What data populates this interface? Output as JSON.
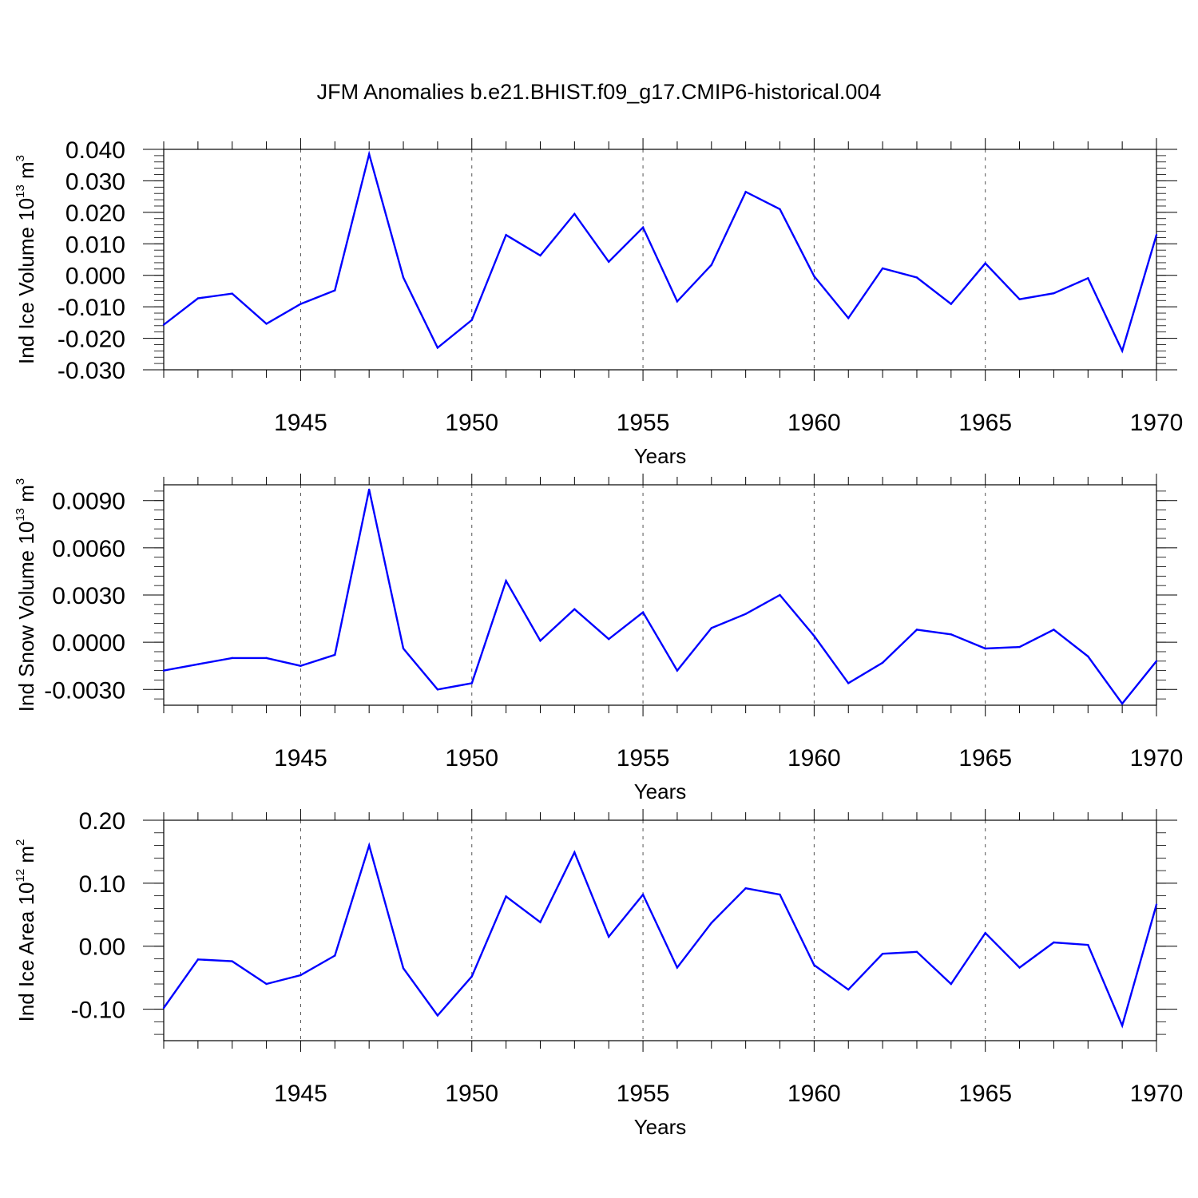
{
  "title": "JFM Anomalies b.e21.BHIST.f09_g17.CMIP6-historical.004",
  "colors": {
    "line": "#0000ff",
    "axis": "#000000",
    "grid": "#555555"
  },
  "chart_data": [
    {
      "type": "line",
      "xlabel": "Years",
      "ylabel": {
        "text": "Ind Ice Volume 10",
        "exp": "13",
        "unit": " m",
        "unit_exp": "3"
      },
      "xlim": [
        1941,
        1970
      ],
      "ylim": [
        -0.03,
        0.04
      ],
      "x_ticks": [
        "1945",
        "1950",
        "1955",
        "1960",
        "1965",
        "1970"
      ],
      "y_ticks": [
        "0.040",
        "0.030",
        "0.020",
        "0.010",
        "0.000",
        "-0.010",
        "-0.020",
        "-0.030"
      ],
      "grid": "vertical dashed at major x ticks",
      "x": [
        1941,
        1942,
        1943,
        1944,
        1945,
        1946,
        1947,
        1948,
        1949,
        1950,
        1951,
        1952,
        1953,
        1954,
        1955,
        1956,
        1957,
        1958,
        1959,
        1960,
        1961,
        1962,
        1963,
        1964,
        1965,
        1966,
        1967,
        1968,
        1969,
        1970
      ],
      "values": [
        -0.0157,
        -0.0073,
        -0.0058,
        -0.0154,
        -0.0091,
        -0.0048,
        0.0385,
        -0.0007,
        -0.023,
        -0.0142,
        0.0128,
        0.0063,
        0.0195,
        0.0043,
        0.0152,
        -0.0083,
        0.0033,
        0.0265,
        0.021,
        -0.0003,
        -0.0136,
        0.0022,
        -0.0007,
        -0.0091,
        0.0038,
        -0.0076,
        -0.0057,
        -0.0009,
        -0.024,
        0.0128
      ]
    },
    {
      "type": "line",
      "xlabel": "Years",
      "ylabel": {
        "text": "Ind Snow Volume 10",
        "exp": "13",
        "unit": " m",
        "unit_exp": "3"
      },
      "xlim": [
        1941,
        1970
      ],
      "ylim": [
        -0.004,
        0.01
      ],
      "x_ticks": [
        "1945",
        "1950",
        "1955",
        "1960",
        "1965",
        "1970"
      ],
      "y_ticks": [
        "0.0090",
        "0.0060",
        "0.0030",
        "0.0000",
        "-0.0030"
      ],
      "grid": "vertical dashed at major x ticks",
      "x": [
        1941,
        1942,
        1943,
        1944,
        1945,
        1946,
        1947,
        1948,
        1949,
        1950,
        1951,
        1952,
        1953,
        1954,
        1955,
        1956,
        1957,
        1958,
        1959,
        1960,
        1961,
        1962,
        1963,
        1964,
        1965,
        1966,
        1967,
        1968,
        1969,
        1970
      ],
      "values": [
        -0.0018,
        -0.0014,
        -0.001,
        -0.001,
        -0.0015,
        -0.0008,
        0.0097,
        -0.0004,
        -0.003,
        -0.0026,
        0.0039,
        0.0001,
        0.0021,
        0.0002,
        0.0019,
        -0.0018,
        0.0009,
        0.0018,
        0.003,
        0.0004,
        -0.0026,
        -0.0013,
        0.0008,
        0.0005,
        -0.0004,
        -0.0003,
        0.0008,
        -0.0009,
        -0.0039,
        -0.0012
      ]
    },
    {
      "type": "line",
      "xlabel": "Years",
      "ylabel": {
        "text": "Ind Ice Area 10",
        "exp": "12",
        "unit": " m",
        "unit_exp": "2"
      },
      "xlim": [
        1941,
        1970
      ],
      "ylim": [
        -0.15,
        0.2
      ],
      "x_ticks": [
        "1945",
        "1950",
        "1955",
        "1960",
        "1965",
        "1970"
      ],
      "y_ticks": [
        "0.20",
        "0.10",
        "0.00",
        "-0.10"
      ],
      "grid": "vertical dashed at major x ticks",
      "x": [
        1941,
        1942,
        1943,
        1944,
        1945,
        1946,
        1947,
        1948,
        1949,
        1950,
        1951,
        1952,
        1953,
        1954,
        1955,
        1956,
        1957,
        1958,
        1959,
        1960,
        1961,
        1962,
        1963,
        1964,
        1965,
        1966,
        1967,
        1968,
        1969,
        1970
      ],
      "values": [
        -0.098,
        -0.021,
        -0.024,
        -0.06,
        -0.046,
        -0.015,
        0.16,
        -0.035,
        -0.11,
        -0.048,
        0.079,
        0.038,
        0.149,
        0.015,
        0.082,
        -0.034,
        0.037,
        0.092,
        0.082,
        -0.03,
        -0.069,
        -0.012,
        -0.009,
        -0.06,
        0.021,
        -0.034,
        0.006,
        0.002,
        -0.126,
        0.066
      ]
    }
  ]
}
